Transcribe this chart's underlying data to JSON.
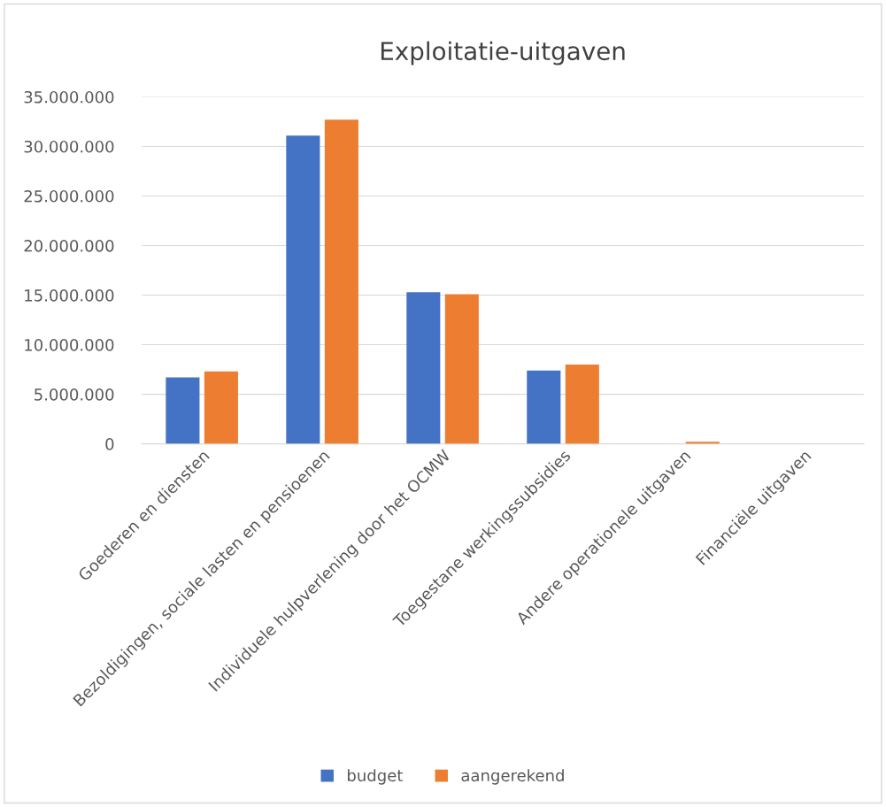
{
  "chart_data": {
    "type": "bar",
    "title": "Exploitatie-uitgaven",
    "categories": [
      "Goederen en diensten",
      "Bezoldigingen, sociale lasten en pensioenen",
      "Individuele hulpverlening door het OCMW",
      "Toegestane werkingssubsidies",
      "Andere operationele uitgaven",
      "Financiële uitgaven"
    ],
    "series": [
      {
        "name": "budget",
        "color": "#4472c4",
        "values": [
          6700000,
          31100000,
          15300000,
          7400000,
          0,
          0
        ]
      },
      {
        "name": "aangerekend",
        "color": "#ed7d31",
        "values": [
          7300000,
          32700000,
          15100000,
          8000000,
          200000,
          0
        ]
      }
    ],
    "ylim": [
      0,
      35000000
    ],
    "yticks": [
      0,
      {
        "value": 5000000,
        "label": "5.000.000"
      },
      {
        "value": 10000000,
        "label": "10.000.000"
      },
      {
        "value": 15000000,
        "label": "15.000.000"
      },
      {
        "value": 20000000,
        "label": "20.000.000"
      },
      {
        "value": 25000000,
        "label": "25.000.000"
      },
      {
        "value": 30000000,
        "label": "30.000.000"
      },
      {
        "value": 35000000,
        "label": "35.000.000"
      }
    ],
    "grid": "y",
    "legend": "bottom"
  }
}
